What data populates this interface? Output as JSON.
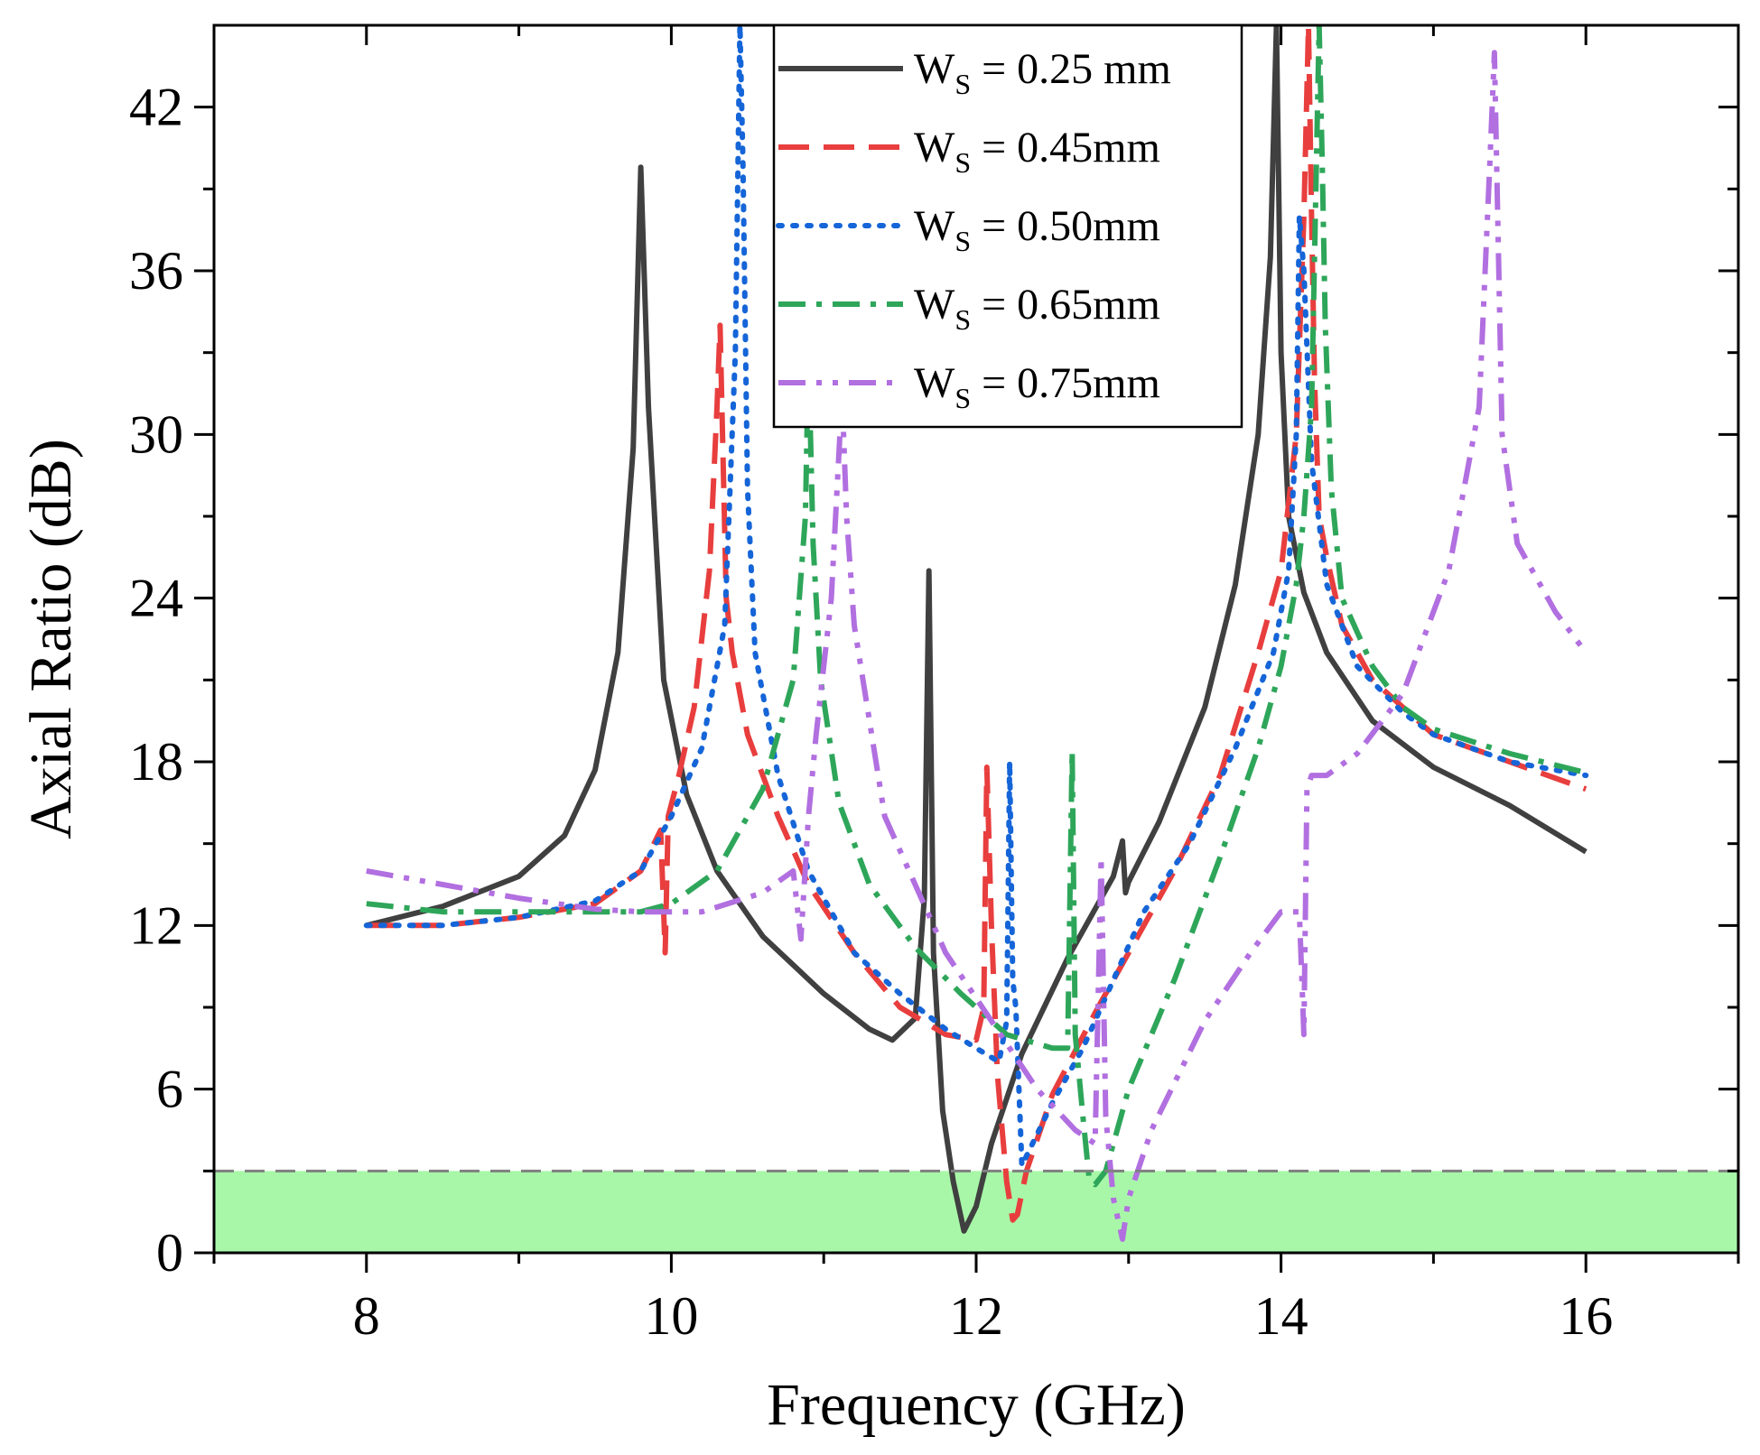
{
  "chart_data": {
    "type": "line",
    "xlabel": "Frequency (GHz)",
    "ylabel": "Axial Ratio (dB)",
    "xlim": [
      7,
      17
    ],
    "ylim": [
      0,
      45
    ],
    "xticks": [
      8,
      10,
      12,
      14,
      16
    ],
    "xtick_labels": [
      "8",
      "10",
      "12",
      "14",
      "16"
    ],
    "yticks": [
      0,
      6,
      12,
      18,
      24,
      30,
      36,
      42
    ],
    "ytick_labels": [
      "0",
      "6",
      "12",
      "18",
      "24",
      "30",
      "36",
      "42"
    ],
    "legend_position": "top-center",
    "threshold": {
      "y": 3,
      "style": "dashed",
      "color": "#808080"
    },
    "shaded_band": {
      "y_from": 0,
      "y_to": 3,
      "color": "#a8f7a8"
    },
    "series": [
      {
        "name_main": "W",
        "name_sub": "S",
        "name_rest": " = 0.25 mm",
        "color": "#404040",
        "style": "solid",
        "x": [
          8.0,
          8.5,
          9.0,
          9.3,
          9.5,
          9.65,
          9.75,
          9.8,
          9.85,
          9.95,
          10.1,
          10.3,
          10.6,
          11.0,
          11.3,
          11.45,
          11.6,
          11.66,
          11.69,
          11.72,
          11.78,
          11.85,
          11.92,
          12.0,
          12.1,
          12.3,
          12.6,
          12.9,
          12.96,
          12.98,
          13.0,
          13.2,
          13.5,
          13.7,
          13.85,
          13.93,
          13.97,
          14.0,
          14.05,
          14.15,
          14.3,
          14.6,
          15.0,
          15.5,
          16.0
        ],
        "y": [
          12.0,
          12.7,
          13.8,
          15.3,
          17.7,
          22.0,
          29.5,
          39.8,
          31.0,
          21.0,
          16.8,
          14.0,
          11.6,
          9.5,
          8.2,
          7.8,
          8.6,
          13.0,
          25.0,
          11.0,
          5.2,
          2.6,
          0.8,
          1.7,
          4.0,
          7.3,
          10.8,
          13.8,
          15.1,
          13.2,
          13.6,
          15.8,
          20.0,
          24.5,
          30.0,
          36.5,
          45.0,
          33.0,
          27.0,
          24.2,
          22.0,
          19.5,
          17.8,
          16.4,
          14.7
        ]
      },
      {
        "name_main": "W",
        "name_sub": "S",
        "name_rest": " = 0.45mm",
        "color": "#e83e3e",
        "style": "dashed",
        "x": [
          8.0,
          8.5,
          9.0,
          9.5,
          9.8,
          9.93,
          9.96,
          9.98,
          10.05,
          10.15,
          10.25,
          10.3,
          10.32,
          10.34,
          10.36,
          10.4,
          10.5,
          10.7,
          10.9,
          11.2,
          11.5,
          11.8,
          12.0,
          12.05,
          12.07,
          12.1,
          12.14,
          12.2,
          12.24,
          12.27,
          12.33,
          12.5,
          12.8,
          13.0,
          13.3,
          13.6,
          13.85,
          14.0,
          14.1,
          14.15,
          14.18,
          14.2,
          14.22,
          14.25,
          14.3,
          14.4,
          14.6,
          14.8,
          15.0,
          15.5,
          16.0
        ],
        "y": [
          12.0,
          12.0,
          12.3,
          12.8,
          14.0,
          15.5,
          11.0,
          16.0,
          17.5,
          20.0,
          25.0,
          31.0,
          34.0,
          29.0,
          24.0,
          22.0,
          19.0,
          16.0,
          13.5,
          11.0,
          9.0,
          8.0,
          7.8,
          9.0,
          17.8,
          12.0,
          6.5,
          2.6,
          1.2,
          1.4,
          3.0,
          5.8,
          9.0,
          11.0,
          14.0,
          17.5,
          22.0,
          25.0,
          30.0,
          38.0,
          45.0,
          38.0,
          32.0,
          27.0,
          25.5,
          23.0,
          21.0,
          20.0,
          19.0,
          18.0,
          17.0
        ]
      },
      {
        "name_main": "W",
        "name_sub": "S",
        "name_rest": " = 0.50mm",
        "color": "#1565d8",
        "style": "dotted",
        "x": [
          8.0,
          8.5,
          9.0,
          9.5,
          9.8,
          10.0,
          10.2,
          10.35,
          10.42,
          10.45,
          10.47,
          10.5,
          10.55,
          10.7,
          10.9,
          11.2,
          11.5,
          11.8,
          12.0,
          12.15,
          12.2,
          12.22,
          12.24,
          12.26,
          12.3,
          12.5,
          12.7,
          12.9,
          13.1,
          13.4,
          13.7,
          13.95,
          14.05,
          14.1,
          14.12,
          14.15,
          14.2,
          14.3,
          14.5,
          14.8,
          15.0,
          15.5,
          16.0
        ],
        "y": [
          12.0,
          12.0,
          12.3,
          12.9,
          14.0,
          16.0,
          18.5,
          23.0,
          33.0,
          45.0,
          40.0,
          28.0,
          22.0,
          17.5,
          14.0,
          11.0,
          9.5,
          8.2,
          7.5,
          7.0,
          8.5,
          18.0,
          10.0,
          9.0,
          3.2,
          5.5,
          7.5,
          10.0,
          12.5,
          15.0,
          18.5,
          22.0,
          25.0,
          30.0,
          38.0,
          36.0,
          29.0,
          24.5,
          21.5,
          19.8,
          19.0,
          18.0,
          17.5
        ]
      },
      {
        "name_main": "W",
        "name_sub": "S",
        "name_rest": " = 0.65mm",
        "color": "#2ea65a",
        "style": "dash-dot",
        "x": [
          8.0,
          8.5,
          9.0,
          9.5,
          9.8,
          10.0,
          10.3,
          10.6,
          10.8,
          10.88,
          10.9,
          10.93,
          10.98,
          11.1,
          11.3,
          11.6,
          11.9,
          12.2,
          12.5,
          12.6,
          12.63,
          12.65,
          12.7,
          12.74,
          12.78,
          12.85,
          13.0,
          13.3,
          13.6,
          13.85,
          14.0,
          14.1,
          14.15,
          14.2,
          14.25,
          14.27,
          14.29,
          14.33,
          14.4,
          14.6,
          14.8,
          15.0,
          15.5,
          16.0
        ],
        "y": [
          12.8,
          12.5,
          12.5,
          12.5,
          12.5,
          12.8,
          14.0,
          17.0,
          21.0,
          27.0,
          33.0,
          26.0,
          21.0,
          16.5,
          13.5,
          11.2,
          9.5,
          8.0,
          7.5,
          7.5,
          18.4,
          8.0,
          5.0,
          2.8,
          2.5,
          3.0,
          6.0,
          10.0,
          14.5,
          18.5,
          21.5,
          24.5,
          27.0,
          31.0,
          45.0,
          40.0,
          34.0,
          28.0,
          24.0,
          21.5,
          20.0,
          19.2,
          18.3,
          17.6
        ]
      },
      {
        "name_main": "W",
        "name_sub": "S",
        "name_rest": " = 0.75mm",
        "color": "#b16fe0",
        "style": "dash-dot-dot",
        "x": [
          8.0,
          8.5,
          9.0,
          9.5,
          9.8,
          10.2,
          10.6,
          10.8,
          10.85,
          10.9,
          10.95,
          11.05,
          11.12,
          11.15,
          11.2,
          11.4,
          11.8,
          12.1,
          12.4,
          12.65,
          12.78,
          12.82,
          12.85,
          12.9,
          12.96,
          13.0,
          13.15,
          13.5,
          13.8,
          14.0,
          14.12,
          14.15,
          14.17,
          14.2,
          14.3,
          14.5,
          14.8,
          15.1,
          15.3,
          15.37,
          15.4,
          15.45,
          15.55,
          15.8,
          16.0
        ],
        "y": [
          14.0,
          13.5,
          13.0,
          12.6,
          12.5,
          12.5,
          13.2,
          14.0,
          11.5,
          16.0,
          19.0,
          24.0,
          31.5,
          27.0,
          23.0,
          16.0,
          11.0,
          8.5,
          6.0,
          4.5,
          4.0,
          14.5,
          5.0,
          2.0,
          0.5,
          2.0,
          4.5,
          8.5,
          11.0,
          12.5,
          12.5,
          8.0,
          17.0,
          17.5,
          17.5,
          18.3,
          20.5,
          25.0,
          31.0,
          40.0,
          44.0,
          30.0,
          26.0,
          23.5,
          22.0
        ]
      }
    ]
  }
}
